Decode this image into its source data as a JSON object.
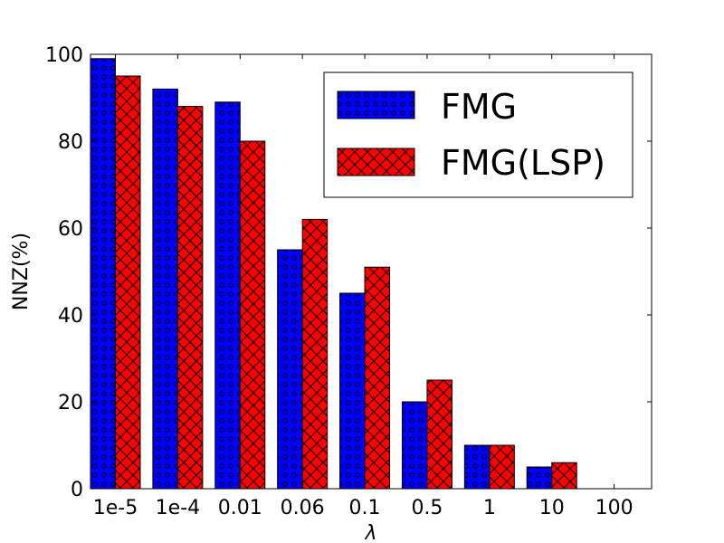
{
  "chart_data": {
    "type": "bar",
    "xlabel": "λ",
    "ylabel": "NNZ(%)",
    "categories": [
      "1e-5",
      "1e-4",
      "0.01",
      "0.06",
      "0.1",
      "0.5",
      "1",
      "10",
      "100"
    ],
    "ylim": [
      0,
      100
    ],
    "yticks": [
      "0",
      "20",
      "40",
      "60",
      "80",
      "100"
    ],
    "grid": false,
    "legend_position": "top-right",
    "series": [
      {
        "name": "FMG",
        "values": [
          99,
          92,
          89,
          55,
          45,
          20,
          10,
          5,
          0
        ],
        "color": "#0000ff",
        "pattern": "dots"
      },
      {
        "name": "FMG(LSP)",
        "values": [
          95,
          88,
          80,
          62,
          51,
          25,
          10,
          6,
          0
        ],
        "color": "#ff0000",
        "pattern": "crosshatch"
      }
    ]
  }
}
